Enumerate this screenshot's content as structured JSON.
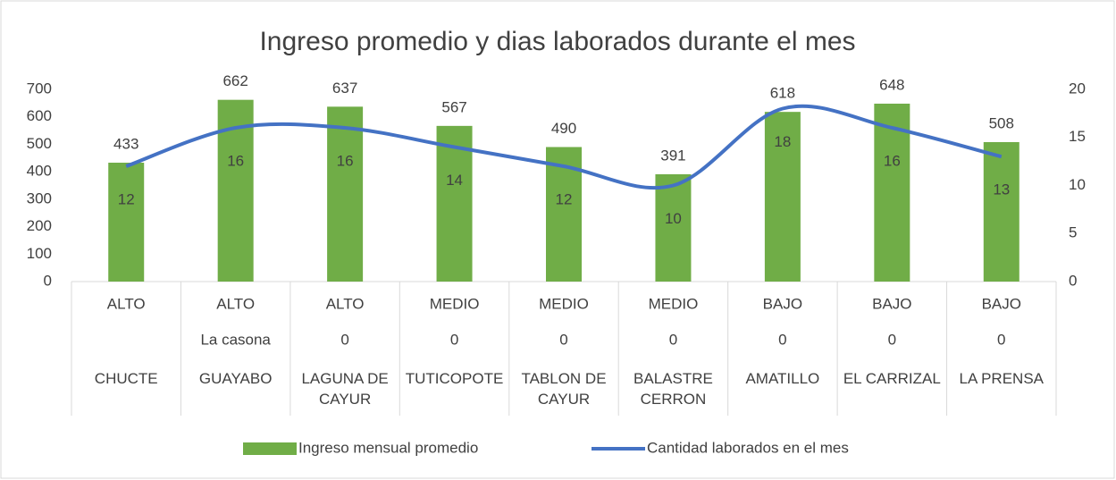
{
  "chart_data": {
    "type": "bar-line",
    "title": "Ingreso promedio y dias laborados durante el mes",
    "categories": [
      [
        "ALTO",
        null,
        "CHUCTE"
      ],
      [
        "ALTO",
        "La casona",
        "GUAYABO"
      ],
      [
        "ALTO",
        "0",
        "LAGUNA DE CAYUR"
      ],
      [
        "MEDIO",
        "0",
        "TUTICOPOTE"
      ],
      [
        "MEDIO",
        "0",
        "TABLON DE CAYUR"
      ],
      [
        "MEDIO",
        "0",
        "BALASTRE CERRON"
      ],
      [
        "BAJO",
        "0",
        "AMATILLO"
      ],
      [
        "BAJO",
        "0",
        "EL CARRIZAL"
      ],
      [
        "BAJO",
        "0",
        "LA PRENSA"
      ]
    ],
    "series": [
      {
        "name": "Ingreso mensual promedio",
        "color": "#70ad47",
        "type": "bar",
        "values": [
          433,
          662,
          637,
          567,
          490,
          391,
          618,
          648,
          508
        ]
      },
      {
        "name": "Cantidad laborados en el mes",
        "color": "#4472c4",
        "type": "line",
        "axis": "y2",
        "values": [
          12,
          16,
          16,
          14,
          12,
          10,
          18,
          16,
          13
        ]
      }
    ],
    "ylim": [
      0,
      700
    ],
    "yticks": [
      0,
      100,
      200,
      300,
      400,
      500,
      600,
      700
    ],
    "y2lim": [
      0,
      20
    ],
    "y2ticks": [
      0,
      5,
      10,
      15,
      20
    ],
    "legend": "bottom"
  }
}
